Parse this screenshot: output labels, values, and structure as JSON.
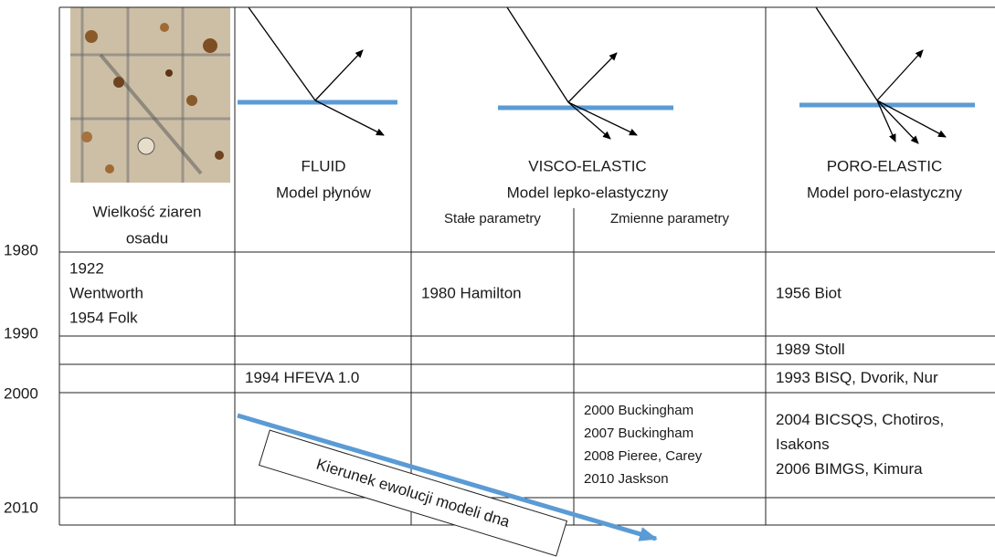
{
  "years": [
    "1980",
    "1990",
    "2000",
    "2010"
  ],
  "headers": [
    {
      "lines": [
        "Wielkość ziaren",
        "osadu"
      ]
    },
    {
      "lines": [
        "FLUID",
        "Model płynów"
      ]
    },
    {
      "lines": [
        "VISCO-ELASTIC",
        "Model lepko-elastyczny"
      ],
      "sub": [
        "Stałe parametry",
        "Zmienne parametry"
      ]
    },
    {
      "lines": [
        "PORO-ELASTIC",
        "Model poro-elastyczny"
      ]
    }
  ],
  "rows": [
    [
      [
        "1922",
        "Wentworth",
        "1954 Folk"
      ],
      [],
      [
        "1980 Hamilton"
      ],
      [],
      [
        "1956 Biot"
      ]
    ],
    [
      [],
      [],
      [],
      [],
      [
        "1989 Stoll"
      ]
    ],
    [
      [],
      [
        "1994 HFEVA 1.0"
      ],
      [],
      [],
      [
        "1993 BISQ, Dvorik, Nur"
      ]
    ],
    [
      [],
      [],
      [],
      [
        "2000 Buckingham",
        "2007 Buckingham",
        "2008 Pieree, Carey",
        "2010 Jaskson"
      ],
      [
        "2004 BICSQS, Chotiros,",
        "Isakons",
        "2006 BIMGS, Kimura"
      ]
    ],
    [
      [],
      [],
      [],
      [],
      []
    ]
  ],
  "arrow_label": "Kierunek ewolucji modeli dna"
}
